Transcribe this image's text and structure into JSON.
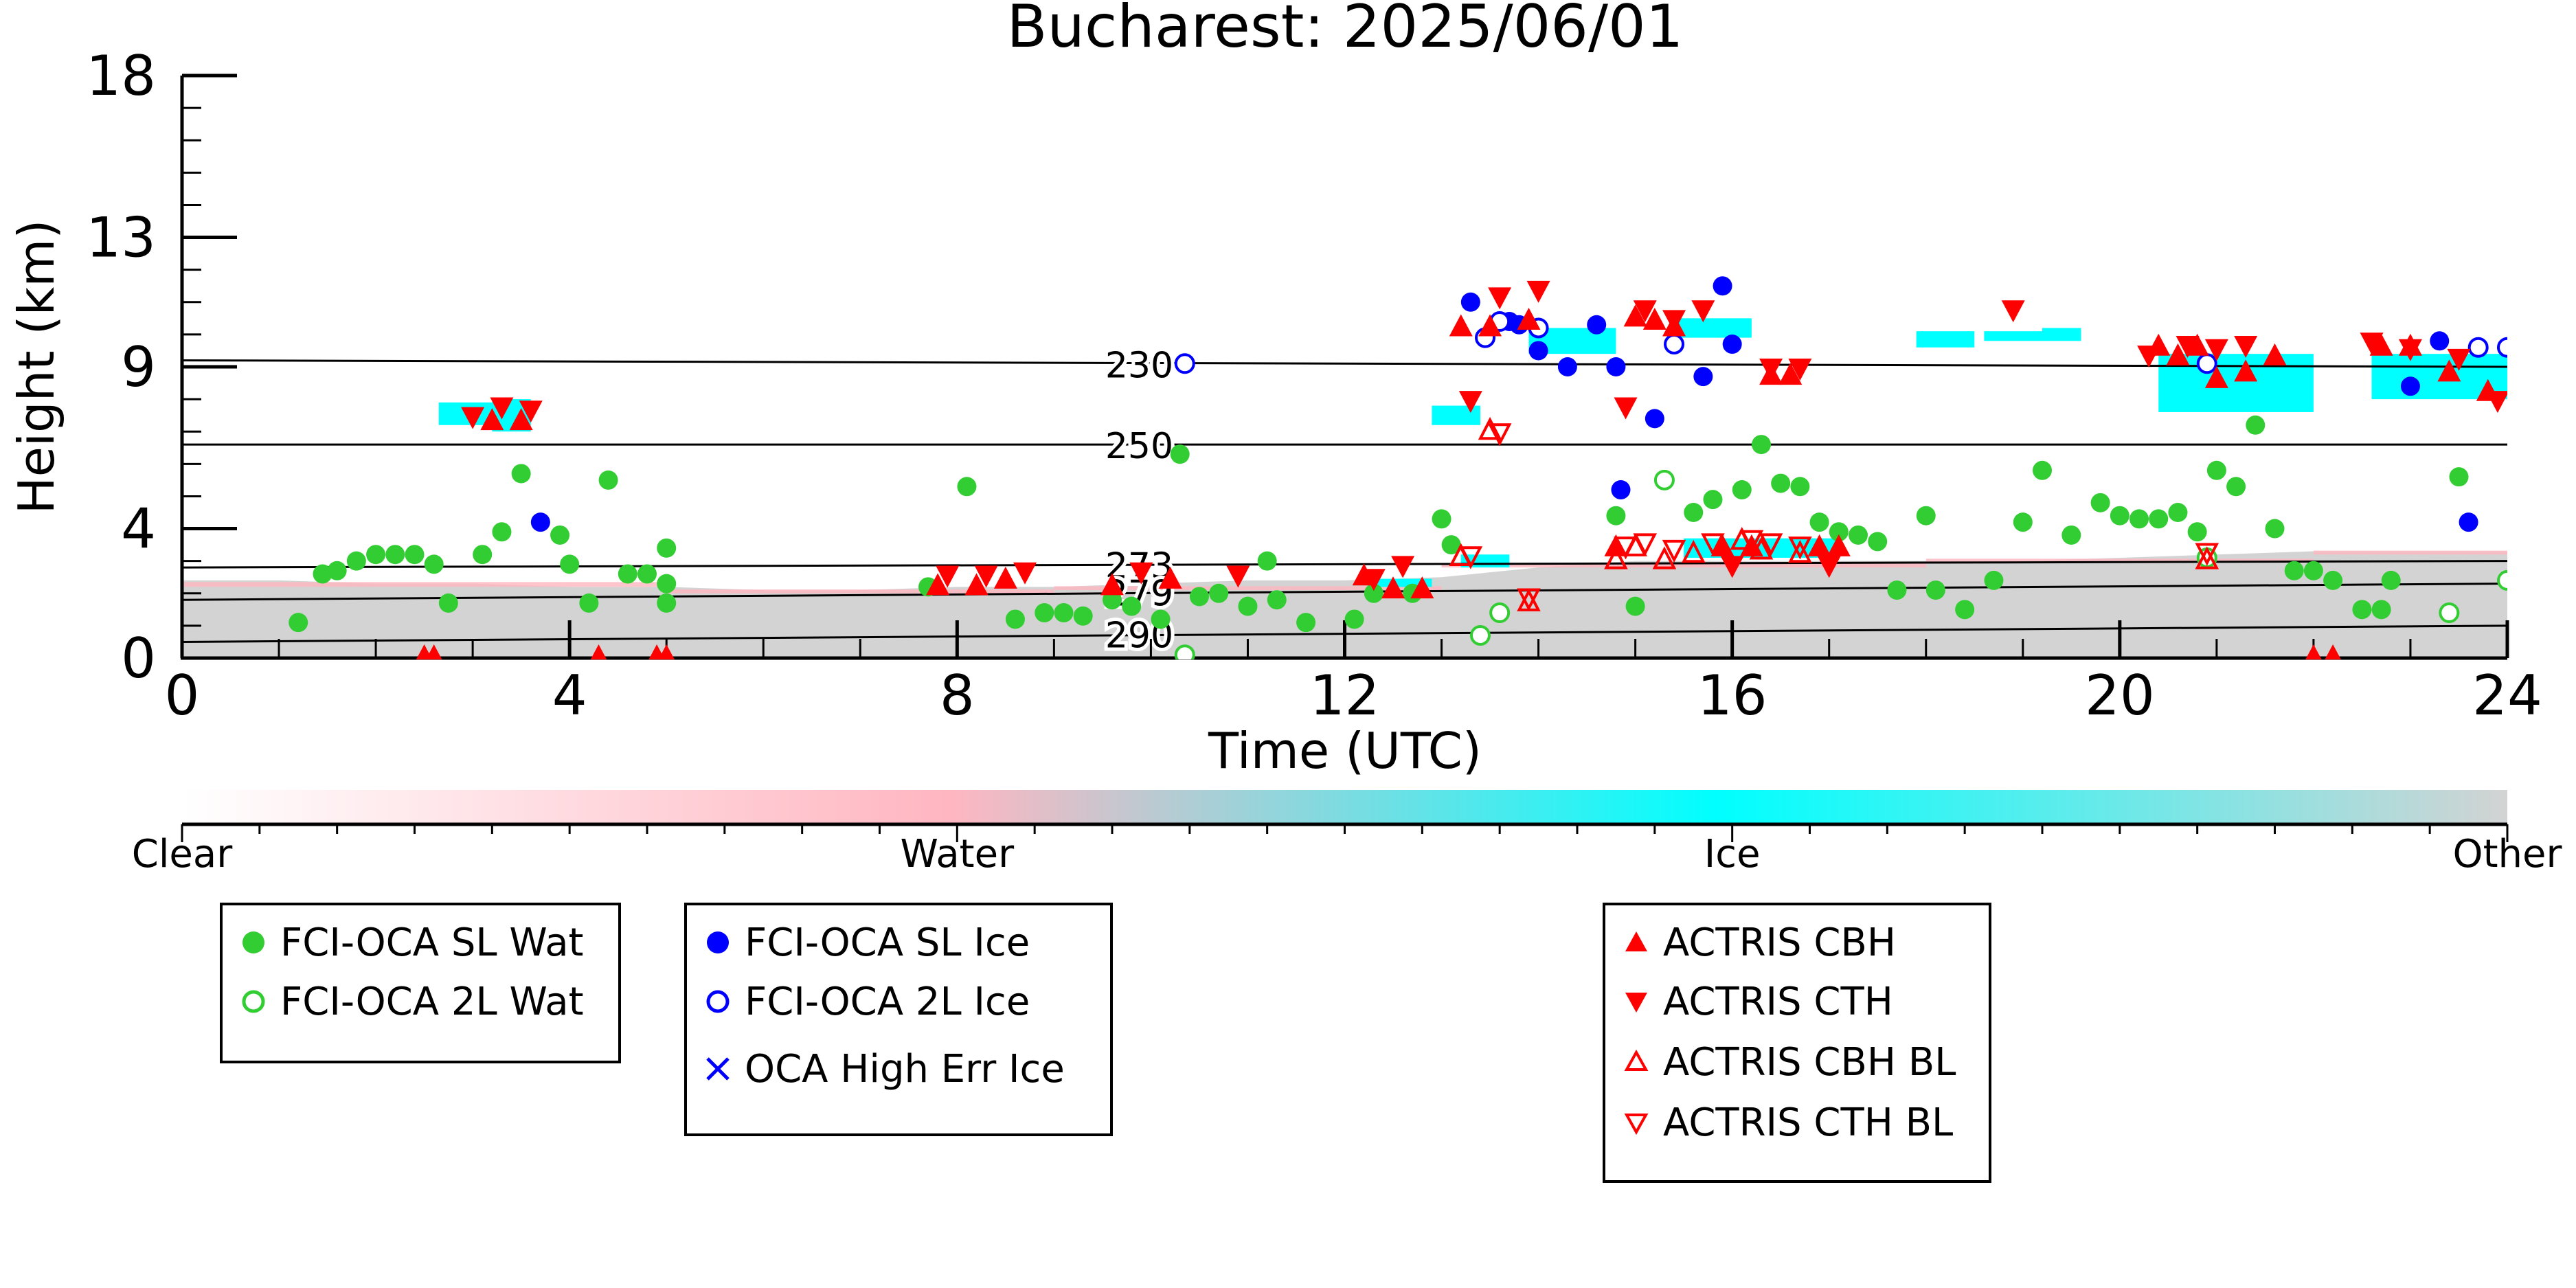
{
  "chart_data": {
    "type": "scatter",
    "title": "Bucharest: 2025/06/01",
    "xlabel": "Time (UTC)",
    "ylabel": "Height (km)",
    "xlim": [
      0,
      24
    ],
    "ylim": [
      0,
      18
    ],
    "x_ticks": [
      "0",
      "4",
      "8",
      "12",
      "16",
      "20",
      "24"
    ],
    "y_ticks": [
      "0",
      "4",
      "9",
      "13",
      "18"
    ],
    "background_classes": {
      "labels": [
        "Clear",
        "Water",
        "Ice",
        "Other"
      ],
      "colors": [
        "#ffffff",
        "#ffb6c1",
        "#00ffff",
        "#d3d3d3"
      ]
    },
    "temperature_lines": [
      {
        "label": "230",
        "y_start": 9.2,
        "y_end": 9.0
      },
      {
        "label": "250",
        "y_start": 6.6,
        "y_end": 6.6
      },
      {
        "label": "273",
        "y_start": 2.8,
        "y_end": 3.0
      },
      {
        "label": "279",
        "y_start": 1.8,
        "y_end": 2.3
      },
      {
        "label": "290",
        "y_start": 0.5,
        "y_end": 1.0
      }
    ],
    "series": [
      {
        "name": "FCI-OCA SL Wat",
        "color": "#32cd32",
        "marker": "filled-circle",
        "points": [
          [
            1.2,
            1.1
          ],
          [
            1.45,
            2.6
          ],
          [
            1.6,
            2.7
          ],
          [
            1.8,
            3.0
          ],
          [
            2.0,
            3.2
          ],
          [
            2.2,
            3.2
          ],
          [
            2.4,
            3.2
          ],
          [
            2.6,
            2.9
          ],
          [
            2.75,
            1.7
          ],
          [
            3.1,
            3.2
          ],
          [
            3.3,
            3.9
          ],
          [
            3.5,
            5.7
          ],
          [
            3.9,
            3.8
          ],
          [
            4.0,
            2.9
          ],
          [
            4.2,
            1.7
          ],
          [
            4.4,
            5.5
          ],
          [
            4.6,
            2.6
          ],
          [
            4.8,
            2.6
          ],
          [
            5.0,
            3.4
          ],
          [
            5.0,
            2.3
          ],
          [
            5.0,
            1.7
          ],
          [
            7.7,
            2.2
          ],
          [
            8.1,
            5.3
          ],
          [
            8.6,
            1.2
          ],
          [
            8.9,
            1.4
          ],
          [
            9.1,
            1.4
          ],
          [
            9.3,
            1.3
          ],
          [
            9.6,
            1.8
          ],
          [
            9.8,
            1.6
          ],
          [
            10.1,
            1.2
          ],
          [
            10.3,
            6.3
          ],
          [
            10.5,
            1.9
          ],
          [
            10.7,
            2.0
          ],
          [
            11.0,
            1.6
          ],
          [
            11.2,
            3.0
          ],
          [
            11.3,
            1.8
          ],
          [
            11.6,
            1.1
          ],
          [
            12.1,
            1.2
          ],
          [
            12.3,
            2.0
          ],
          [
            12.7,
            2.0
          ],
          [
            13.0,
            4.3
          ],
          [
            13.1,
            3.5
          ],
          [
            14.8,
            4.4
          ],
          [
            15.0,
            1.6
          ],
          [
            15.6,
            4.5
          ],
          [
            15.8,
            4.9
          ],
          [
            16.1,
            5.2
          ],
          [
            16.3,
            6.6
          ],
          [
            16.5,
            5.4
          ],
          [
            16.7,
            5.3
          ],
          [
            16.9,
            4.2
          ],
          [
            17.1,
            3.9
          ],
          [
            17.3,
            3.8
          ],
          [
            17.5,
            3.6
          ],
          [
            17.7,
            2.1
          ],
          [
            18.0,
            4.4
          ],
          [
            18.1,
            2.1
          ],
          [
            18.4,
            1.5
          ],
          [
            18.7,
            2.4
          ],
          [
            19.0,
            4.2
          ],
          [
            19.2,
            5.8
          ],
          [
            19.5,
            3.8
          ],
          [
            19.8,
            4.8
          ],
          [
            20.0,
            4.4
          ],
          [
            20.2,
            4.3
          ],
          [
            20.4,
            4.3
          ],
          [
            20.6,
            4.5
          ],
          [
            20.8,
            3.9
          ],
          [
            21.0,
            5.8
          ],
          [
            21.2,
            5.3
          ],
          [
            21.4,
            7.2
          ],
          [
            21.6,
            4.0
          ],
          [
            21.8,
            2.7
          ],
          [
            22.0,
            2.7
          ],
          [
            22.2,
            2.4
          ],
          [
            22.5,
            1.5
          ],
          [
            22.7,
            1.5
          ],
          [
            22.8,
            2.4
          ],
          [
            23.5,
            5.6
          ]
        ]
      },
      {
        "name": "FCI-OCA 2L Wat",
        "color": "#32cd32",
        "marker": "open-circle",
        "points": [
          [
            10.35,
            0.1
          ],
          [
            13.4,
            0.7
          ],
          [
            13.6,
            1.4
          ],
          [
            15.3,
            5.5
          ],
          [
            20.9,
            3.1
          ],
          [
            23.4,
            1.4
          ],
          [
            24.0,
            2.4
          ]
        ]
      },
      {
        "name": "FCI-OCA SL Ice",
        "color": "#0000ff",
        "marker": "filled-circle",
        "points": [
          [
            3.7,
            4.2
          ],
          [
            13.3,
            11.0
          ],
          [
            13.7,
            10.4
          ],
          [
            13.8,
            10.3
          ],
          [
            14.0,
            9.5
          ],
          [
            14.3,
            9.0
          ],
          [
            14.6,
            10.3
          ],
          [
            14.8,
            9.0
          ],
          [
            14.85,
            5.2
          ],
          [
            15.2,
            7.4
          ],
          [
            15.7,
            8.7
          ],
          [
            15.9,
            11.5
          ],
          [
            16.0,
            9.7
          ],
          [
            23.0,
            8.4
          ],
          [
            23.3,
            9.8
          ],
          [
            23.6,
            4.2
          ]
        ]
      },
      {
        "name": "FCI-OCA 2L Ice",
        "color": "#0000ff",
        "marker": "open-circle",
        "points": [
          [
            10.35,
            9.1
          ],
          [
            13.45,
            9.9
          ],
          [
            13.6,
            10.4
          ],
          [
            14.0,
            10.2
          ],
          [
            15.4,
            9.7
          ],
          [
            20.9,
            9.1
          ],
          [
            23.7,
            9.6
          ],
          [
            24.0,
            9.6
          ]
        ]
      },
      {
        "name": "OCA High Err Ice",
        "color": "#0000ff",
        "marker": "x",
        "points": []
      },
      {
        "name": "ACTRIS CBH",
        "color": "#ff0000",
        "marker": "filled-triangle-up",
        "points": [
          [
            2.5,
            0.0
          ],
          [
            2.6,
            0.0
          ],
          [
            3.2,
            7.3
          ],
          [
            3.5,
            7.3
          ],
          [
            4.3,
            0.0
          ],
          [
            4.9,
            0.0
          ],
          [
            5.0,
            0.0
          ],
          [
            7.8,
            2.2
          ],
          [
            8.2,
            2.2
          ],
          [
            8.5,
            2.4
          ],
          [
            9.6,
            2.2
          ],
          [
            10.2,
            2.4
          ],
          [
            12.2,
            2.5
          ],
          [
            12.5,
            2.1
          ],
          [
            12.8,
            2.1
          ],
          [
            13.2,
            10.2
          ],
          [
            13.5,
            10.2
          ],
          [
            13.9,
            10.4
          ],
          [
            14.8,
            3.4
          ],
          [
            15.0,
            10.5
          ],
          [
            15.2,
            10.4
          ],
          [
            15.4,
            10.2
          ],
          [
            15.9,
            3.4
          ],
          [
            16.2,
            3.4
          ],
          [
            16.4,
            8.7
          ],
          [
            16.6,
            8.7
          ],
          [
            16.9,
            3.4
          ],
          [
            17.1,
            3.4
          ],
          [
            20.4,
            9.6
          ],
          [
            20.6,
            9.3
          ],
          [
            20.8,
            9.6
          ],
          [
            21.0,
            8.6
          ],
          [
            21.3,
            8.8
          ],
          [
            21.6,
            9.3
          ],
          [
            22.0,
            0.0
          ],
          [
            22.2,
            0.0
          ],
          [
            22.7,
            9.6
          ],
          [
            23.0,
            9.6
          ],
          [
            23.4,
            8.8
          ],
          [
            23.8,
            8.2
          ]
        ]
      },
      {
        "name": "ACTRIS CTH",
        "color": "#ff0000",
        "marker": "filled-triangle-down",
        "points": [
          [
            3.0,
            7.5
          ],
          [
            3.3,
            7.8
          ],
          [
            3.6,
            7.7
          ],
          [
            7.9,
            2.6
          ],
          [
            8.3,
            2.6
          ],
          [
            8.7,
            2.7
          ],
          [
            9.9,
            2.7
          ],
          [
            10.9,
            2.6
          ],
          [
            12.3,
            2.5
          ],
          [
            12.6,
            2.9
          ],
          [
            13.3,
            8.0
          ],
          [
            13.6,
            11.2
          ],
          [
            14.0,
            11.4
          ],
          [
            14.9,
            7.8
          ],
          [
            15.1,
            10.8
          ],
          [
            15.4,
            10.5
          ],
          [
            15.7,
            10.8
          ],
          [
            16.0,
            2.9
          ],
          [
            16.4,
            9.0
          ],
          [
            16.7,
            9.0
          ],
          [
            17.0,
            2.9
          ],
          [
            18.9,
            10.8
          ],
          [
            20.3,
            9.4
          ],
          [
            20.7,
            9.7
          ],
          [
            21.0,
            9.6
          ],
          [
            21.3,
            9.7
          ],
          [
            22.6,
            9.8
          ],
          [
            23.0,
            9.6
          ],
          [
            23.5,
            9.3
          ],
          [
            23.9,
            8.0
          ]
        ]
      },
      {
        "name": "ACTRIS CBH BL",
        "color": "#ff0000",
        "marker": "open-triangle-up",
        "points": [
          [
            13.2,
            3.1
          ],
          [
            13.5,
            7.0
          ],
          [
            13.9,
            1.7
          ],
          [
            14.8,
            3.0
          ],
          [
            15.0,
            3.4
          ],
          [
            15.3,
            3.0
          ],
          [
            15.6,
            3.2
          ],
          [
            16.1,
            3.6
          ],
          [
            16.3,
            3.3
          ],
          [
            16.7,
            3.2
          ],
          [
            20.9,
            3.0
          ]
        ]
      },
      {
        "name": "ACTRIS CTH BL",
        "color": "#ff0000",
        "marker": "open-triangle-down",
        "points": [
          [
            13.3,
            3.2
          ],
          [
            13.6,
            7.0
          ],
          [
            13.9,
            1.9
          ],
          [
            14.9,
            3.5
          ],
          [
            15.1,
            3.6
          ],
          [
            15.4,
            3.4
          ],
          [
            15.8,
            3.6
          ],
          [
            16.2,
            3.7
          ],
          [
            16.4,
            3.6
          ],
          [
            16.7,
            3.5
          ],
          [
            20.9,
            3.3
          ]
        ]
      }
    ],
    "legend_groups": [
      [
        "FCI-OCA SL Wat",
        "FCI-OCA 2L Wat"
      ],
      [
        "FCI-OCA SL Ice",
        "FCI-OCA 2L Ice",
        "OCA High Err Ice"
      ],
      [
        "ACTRIS CBH",
        "ACTRIS CTH",
        "ACTRIS CBH BL",
        "ACTRIS CTH BL"
      ]
    ]
  }
}
